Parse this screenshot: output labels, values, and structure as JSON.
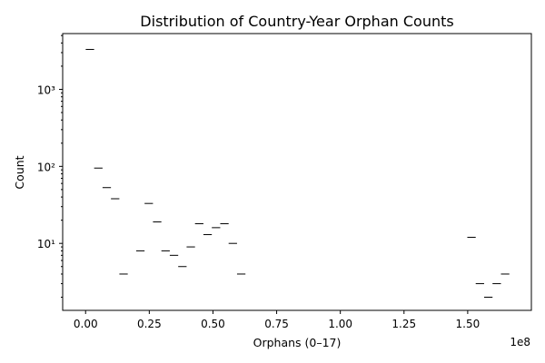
{
  "chart_data": {
    "type": "histogram",
    "title": "Distribution of Country-Year Orphan Counts",
    "xlabel": "Orphans (0–17)",
    "ylabel": "Count",
    "x_offset_label": "1e8",
    "x_unit": 100000000,
    "xlim": [
      -9000000,
      175000000
    ],
    "ylim": [
      1.35,
      5300
    ],
    "y_scale": "log",
    "x_ticks": [
      0,
      25000000,
      50000000,
      75000000,
      100000000,
      125000000,
      150000000
    ],
    "x_tick_labels": [
      "0.00",
      "0.25",
      "0.50",
      "0.75",
      "1.00",
      "1.25",
      "1.50"
    ],
    "y_ticks": [
      10,
      100,
      1000
    ],
    "y_tick_labels": [
      "10¹",
      "10²",
      "10³"
    ],
    "bin_width": 3300000,
    "bins": [
      {
        "x": 1700000,
        "count": 3300
      },
      {
        "x": 5000000,
        "count": 95
      },
      {
        "x": 8300000,
        "count": 53
      },
      {
        "x": 11600000,
        "count": 38
      },
      {
        "x": 14900000,
        "count": 4
      },
      {
        "x": 21500000,
        "count": 8
      },
      {
        "x": 24800000,
        "count": 33
      },
      {
        "x": 28100000,
        "count": 19
      },
      {
        "x": 31400000,
        "count": 8
      },
      {
        "x": 34700000,
        "count": 7
      },
      {
        "x": 38000000,
        "count": 5
      },
      {
        "x": 41300000,
        "count": 9
      },
      {
        "x": 44600000,
        "count": 18
      },
      {
        "x": 47900000,
        "count": 13
      },
      {
        "x": 51200000,
        "count": 16
      },
      {
        "x": 54500000,
        "count": 18
      },
      {
        "x": 57800000,
        "count": 10
      },
      {
        "x": 61100000,
        "count": 4
      },
      {
        "x": 151500000,
        "count": 12
      },
      {
        "x": 154800000,
        "count": 3
      },
      {
        "x": 158100000,
        "count": 2
      },
      {
        "x": 161400000,
        "count": 3
      },
      {
        "x": 164700000,
        "count": 4
      }
    ],
    "grid": false
  }
}
